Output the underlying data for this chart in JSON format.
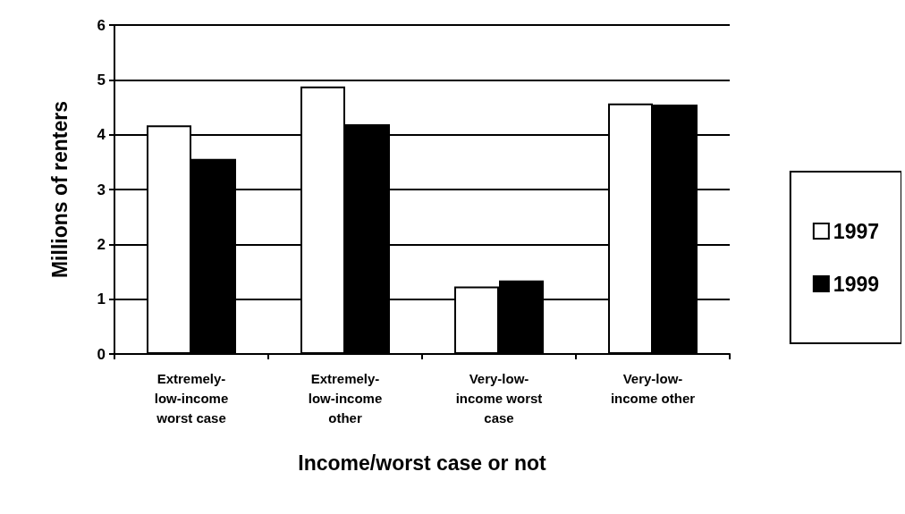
{
  "chart_data": {
    "type": "bar",
    "xlabel": "Income/worst case or not",
    "ylabel": "Millions of renters",
    "categories": [
      "Extremely-low-income worst case",
      "Extremely-low-income other",
      "Very-low-income worst case",
      "Very-low-income other"
    ],
    "series": [
      {
        "name": "1997",
        "color": "#ffffff",
        "values": [
          4.17,
          4.88,
          1.23,
          4.57
        ]
      },
      {
        "name": "1999",
        "color": "#000000",
        "values": [
          3.56,
          4.19,
          1.34,
          4.55
        ]
      }
    ],
    "ylim": [
      0,
      6
    ],
    "yticks": [
      0,
      1,
      2,
      3,
      4,
      5,
      6
    ],
    "grid": "y",
    "legend": "right"
  }
}
